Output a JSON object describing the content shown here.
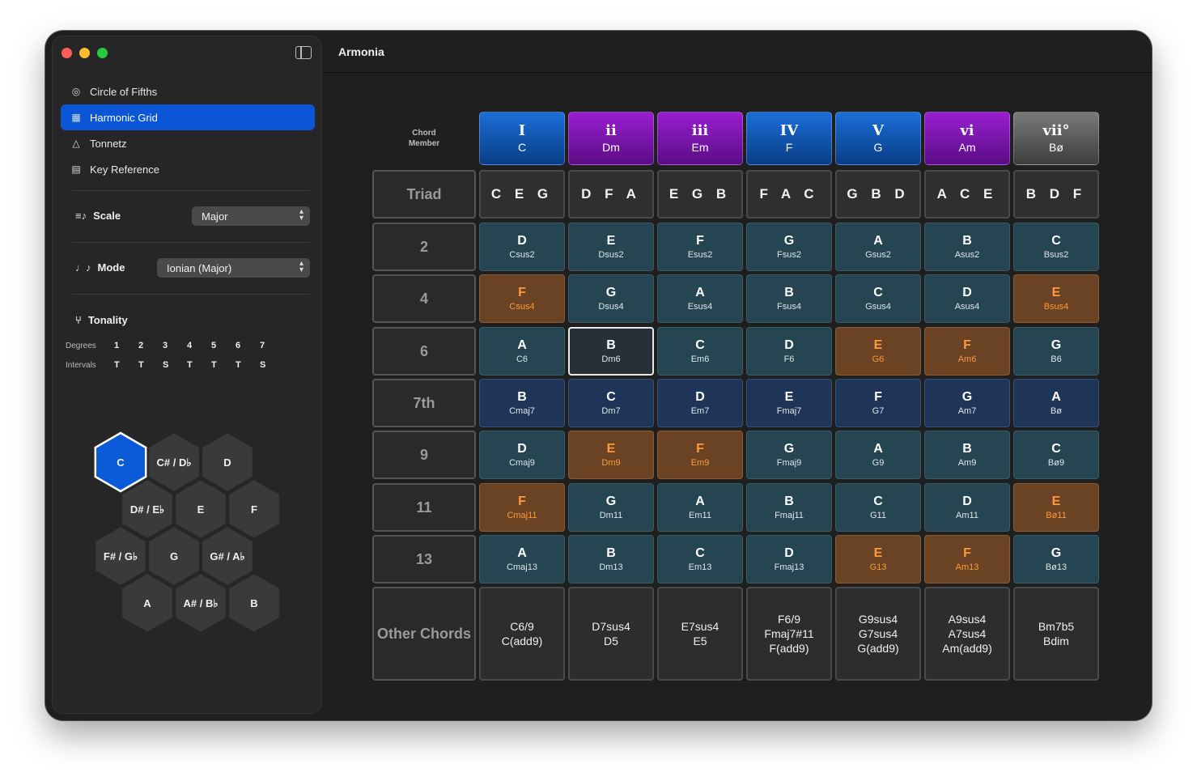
{
  "app": {
    "title": "Armonia"
  },
  "sidebar": {
    "nav": [
      {
        "label": "Circle of Fifths",
        "icon": "circle-target-icon",
        "active": false
      },
      {
        "label": "Harmonic Grid",
        "icon": "grid-icon",
        "active": true
      },
      {
        "label": "Tonnetz",
        "icon": "triangle-icon",
        "active": false
      },
      {
        "label": "Key Reference",
        "icon": "table-icon",
        "active": false
      }
    ],
    "scale": {
      "label": "Scale",
      "value": "Major"
    },
    "mode": {
      "label": "Mode",
      "value": "Ionian (Major)"
    },
    "tonality": {
      "label": "Tonality",
      "degrees_label": "Degrees",
      "intervals_label": "Intervals",
      "degrees": [
        "1",
        "2",
        "3",
        "4",
        "5",
        "6",
        "7"
      ],
      "intervals": [
        "T",
        "T",
        "S",
        "T",
        "T",
        "T",
        "S"
      ]
    },
    "keys": [
      {
        "label": "C",
        "selected": true
      },
      {
        "label": "C# / D♭",
        "selected": false
      },
      {
        "label": "D",
        "selected": false
      },
      {
        "label": "D# / E♭",
        "selected": false
      },
      {
        "label": "E",
        "selected": false
      },
      {
        "label": "F",
        "selected": false
      },
      {
        "label": "F# / G♭",
        "selected": false
      },
      {
        "label": "G",
        "selected": false
      },
      {
        "label": "G# / A♭",
        "selected": false
      },
      {
        "label": "A",
        "selected": false
      },
      {
        "label": "A# / B♭",
        "selected": false
      },
      {
        "label": "B",
        "selected": false
      }
    ]
  },
  "grid": {
    "corner_label_1": "Chord",
    "corner_label_2": "Member",
    "columns": [
      {
        "roman": "I",
        "key": "C",
        "quality": "major"
      },
      {
        "roman": "ii",
        "key": "Dm",
        "quality": "minor"
      },
      {
        "roman": "iii",
        "key": "Em",
        "quality": "minor"
      },
      {
        "roman": "IV",
        "key": "F",
        "quality": "major"
      },
      {
        "roman": "V",
        "key": "G",
        "quality": "major"
      },
      {
        "roman": "vi",
        "key": "Am",
        "quality": "minor"
      },
      {
        "roman": "vii°",
        "key": "Bø",
        "quality": "diminished"
      }
    ],
    "triad_label": "Triad",
    "triads": [
      "C E G",
      "D F A",
      "E G B",
      "F A C",
      "G B D",
      "A C E",
      "B D F"
    ],
    "rows": [
      {
        "label": "2",
        "cells": [
          {
            "n": "D",
            "c": "Csus2",
            "s": "teal"
          },
          {
            "n": "E",
            "c": "Dsus2",
            "s": "teal"
          },
          {
            "n": "F",
            "c": "Esus2",
            "s": "teal"
          },
          {
            "n": "G",
            "c": "Fsus2",
            "s": "teal"
          },
          {
            "n": "A",
            "c": "Gsus2",
            "s": "teal"
          },
          {
            "n": "B",
            "c": "Asus2",
            "s": "teal"
          },
          {
            "n": "C",
            "c": "Bsus2",
            "s": "teal"
          }
        ]
      },
      {
        "label": "4",
        "cells": [
          {
            "n": "F",
            "c": "Csus4",
            "s": "brown"
          },
          {
            "n": "G",
            "c": "Dsus4",
            "s": "teal"
          },
          {
            "n": "A",
            "c": "Esus4",
            "s": "teal"
          },
          {
            "n": "B",
            "c": "Fsus4",
            "s": "teal"
          },
          {
            "n": "C",
            "c": "Gsus4",
            "s": "teal"
          },
          {
            "n": "D",
            "c": "Asus4",
            "s": "teal"
          },
          {
            "n": "E",
            "c": "Bsus4",
            "s": "brown"
          }
        ]
      },
      {
        "label": "6",
        "cells": [
          {
            "n": "A",
            "c": "C6",
            "s": "teal"
          },
          {
            "n": "B",
            "c": "Dm6",
            "s": "sel"
          },
          {
            "n": "C",
            "c": "Em6",
            "s": "teal"
          },
          {
            "n": "D",
            "c": "F6",
            "s": "teal"
          },
          {
            "n": "E",
            "c": "G6",
            "s": "brown"
          },
          {
            "n": "F",
            "c": "Am6",
            "s": "brown"
          },
          {
            "n": "G",
            "c": "B6",
            "s": "teal"
          }
        ]
      },
      {
        "label": "7th",
        "cells": [
          {
            "n": "B",
            "c": "Cmaj7",
            "s": "navy"
          },
          {
            "n": "C",
            "c": "Dm7",
            "s": "navy"
          },
          {
            "n": "D",
            "c": "Em7",
            "s": "navy"
          },
          {
            "n": "E",
            "c": "Fmaj7",
            "s": "navy"
          },
          {
            "n": "F",
            "c": "G7",
            "s": "navy"
          },
          {
            "n": "G",
            "c": "Am7",
            "s": "navy"
          },
          {
            "n": "A",
            "c": "Bø",
            "s": "navy"
          }
        ]
      },
      {
        "label": "9",
        "cells": [
          {
            "n": "D",
            "c": "Cmaj9",
            "s": "teal"
          },
          {
            "n": "E",
            "c": "Dm9",
            "s": "brown"
          },
          {
            "n": "F",
            "c": "Em9",
            "s": "brown"
          },
          {
            "n": "G",
            "c": "Fmaj9",
            "s": "teal"
          },
          {
            "n": "A",
            "c": "G9",
            "s": "teal"
          },
          {
            "n": "B",
            "c": "Am9",
            "s": "teal"
          },
          {
            "n": "C",
            "c": "Bø9",
            "s": "teal"
          }
        ]
      },
      {
        "label": "11",
        "cells": [
          {
            "n": "F",
            "c": "Cmaj11",
            "s": "brown"
          },
          {
            "n": "G",
            "c": "Dm11",
            "s": "teal"
          },
          {
            "n": "A",
            "c": "Em11",
            "s": "teal"
          },
          {
            "n": "B",
            "c": "Fmaj11",
            "s": "teal"
          },
          {
            "n": "C",
            "c": "G11",
            "s": "teal"
          },
          {
            "n": "D",
            "c": "Am11",
            "s": "teal"
          },
          {
            "n": "E",
            "c": "Bø11",
            "s": "brown"
          }
        ]
      },
      {
        "label": "13",
        "cells": [
          {
            "n": "A",
            "c": "Cmaj13",
            "s": "teal"
          },
          {
            "n": "B",
            "c": "Dm13",
            "s": "teal"
          },
          {
            "n": "C",
            "c": "Em13",
            "s": "teal"
          },
          {
            "n": "D",
            "c": "Fmaj13",
            "s": "teal"
          },
          {
            "n": "E",
            "c": "G13",
            "s": "brown"
          },
          {
            "n": "F",
            "c": "Am13",
            "s": "brown"
          },
          {
            "n": "G",
            "c": "Bø13",
            "s": "teal"
          }
        ]
      }
    ],
    "other_label": "Other Chords",
    "other": [
      [
        "C6/9",
        "C(add9)"
      ],
      [
        "D7sus4",
        "D5"
      ],
      [
        "E7sus4",
        "E5"
      ],
      [
        "F6/9",
        "Fmaj7#11",
        "F(add9)"
      ],
      [
        "G9sus4",
        "G7sus4",
        "G(add9)"
      ],
      [
        "A9sus4",
        "A7sus4",
        "Am(add9)"
      ],
      [
        "Bm7b5",
        "Bdim"
      ]
    ]
  },
  "colors": {
    "accent": "#0a56d6",
    "major": "#1a6ed8",
    "minor": "#9a1ed0",
    "diminished": "#7a7a7a",
    "highlight": "#ff9a3a"
  }
}
